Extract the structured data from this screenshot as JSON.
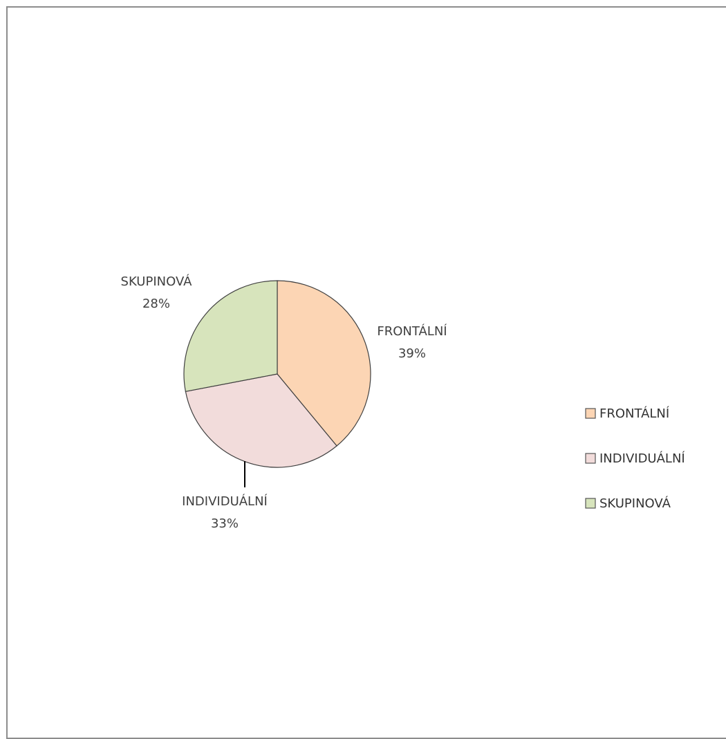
{
  "chart_data": {
    "type": "pie",
    "title": "",
    "categories": [
      "FRONTÁLNÍ",
      "INDIVIDUÁLNÍ",
      "SKUPINOVÁ"
    ],
    "values": [
      39,
      33,
      28
    ],
    "percent_labels": [
      "39%",
      "33%",
      "28%"
    ],
    "colors": [
      "#fcd5b4",
      "#f2dcdb",
      "#d7e4bc"
    ],
    "legend": {
      "position": "right",
      "entries": [
        "FRONTÁLNÍ",
        "INDIVIDUÁLNÍ",
        "SKUPINOVÁ"
      ]
    }
  }
}
